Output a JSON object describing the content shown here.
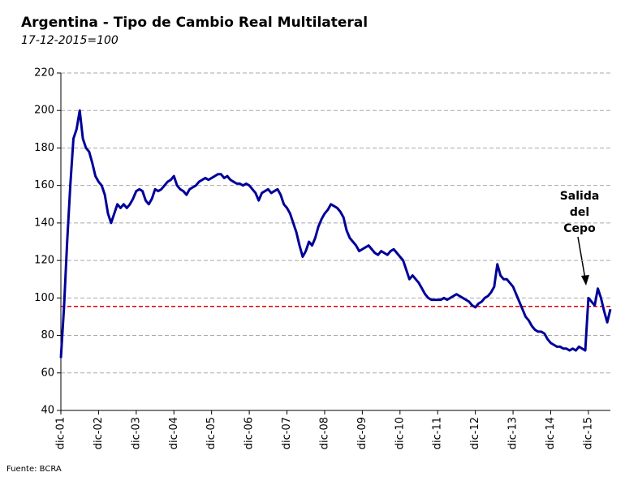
{
  "chart_data": {
    "type": "line",
    "title": "Argentina - Tipo de Cambio Real Multilateral",
    "subtitle": "17-12-2015=100",
    "source": "Fuente: BCRA",
    "categories": [
      "dic-01",
      null,
      null,
      null,
      null,
      null,
      null,
      null,
      null,
      null,
      null,
      null,
      "dic-02",
      null,
      null,
      null,
      null,
      null,
      null,
      null,
      null,
      null,
      null,
      null,
      "dic-03",
      null,
      null,
      null,
      null,
      null,
      null,
      null,
      null,
      null,
      null,
      null,
      "dic-04",
      null,
      null,
      null,
      null,
      null,
      null,
      null,
      null,
      null,
      null,
      null,
      "dic-05",
      null,
      null,
      null,
      null,
      null,
      null,
      null,
      null,
      null,
      null,
      null,
      "dic-06",
      null,
      null,
      null,
      null,
      null,
      null,
      null,
      null,
      null,
      null,
      null,
      "dic-07",
      null,
      null,
      null,
      null,
      null,
      null,
      null,
      null,
      null,
      null,
      null,
      "dic-08",
      null,
      null,
      null,
      null,
      null,
      null,
      null,
      null,
      null,
      null,
      null,
      "dic-09",
      null,
      null,
      null,
      null,
      null,
      null,
      null,
      null,
      null,
      null,
      null,
      "dic-10",
      null,
      null,
      null,
      null,
      null,
      null,
      null,
      null,
      null,
      null,
      null,
      "dic-11",
      null,
      null,
      null,
      null,
      null,
      null,
      null,
      null,
      null,
      null,
      null,
      "dic-12",
      null,
      null,
      null,
      null,
      null,
      null,
      null,
      null,
      null,
      null,
      null,
      "dic-13",
      null,
      null,
      null,
      null,
      null,
      null,
      null,
      null,
      null,
      null,
      null,
      "dic-14",
      null,
      null,
      null,
      null,
      null,
      null,
      null,
      null,
      null,
      null,
      null,
      "dic-15",
      null,
      null,
      null,
      null,
      null,
      null,
      null
    ],
    "series": [
      {
        "color": "#000099",
        "values": [
          68,
          95,
          130,
          160,
          185,
          190,
          200,
          185,
          180,
          178,
          172,
          165,
          162,
          160,
          155,
          145,
          140,
          145,
          150,
          148,
          150,
          148,
          150,
          153,
          157,
          158,
          157,
          152,
          150,
          153,
          158,
          157,
          158,
          160,
          162,
          163,
          165,
          160,
          158,
          157,
          155,
          158,
          159,
          160,
          162,
          163,
          164,
          163,
          164,
          165,
          166,
          166,
          164,
          165,
          163,
          162,
          161,
          161,
          160,
          161,
          160,
          158,
          156,
          152,
          156,
          157,
          158,
          156,
          157,
          158,
          155,
          150,
          148,
          145,
          140,
          135,
          128,
          122,
          125,
          130,
          128,
          132,
          138,
          142,
          145,
          147,
          150,
          149,
          148,
          146,
          143,
          136,
          132,
          130,
          128,
          125,
          126,
          127,
          128,
          126,
          124,
          123,
          125,
          124,
          123,
          125,
          126,
          124,
          122,
          120,
          115,
          110,
          112,
          110,
          108,
          105,
          102,
          100,
          99,
          99,
          99,
          99,
          100,
          99,
          100,
          101,
          102,
          101,
          100,
          99,
          98,
          96,
          95,
          97,
          98,
          100,
          101,
          103,
          106,
          118,
          112,
          110,
          110,
          108,
          106,
          102,
          98,
          94,
          90,
          88,
          85,
          83,
          82,
          82,
          81,
          78,
          76,
          75,
          74,
          74,
          73,
          73,
          72,
          73,
          72,
          74,
          73,
          72,
          100,
          98,
          96,
          105,
          100,
          93,
          87,
          94
        ]
      }
    ],
    "reference_line": {
      "value": 95.5,
      "color": "#e00000"
    },
    "annotation": {
      "lines": [
        "Salida",
        "del",
        "Cepo"
      ]
    },
    "ylim": [
      40,
      220
    ],
    "yticks": [
      40,
      60,
      80,
      100,
      120,
      140,
      160,
      180,
      200,
      220
    ],
    "grid": true
  }
}
